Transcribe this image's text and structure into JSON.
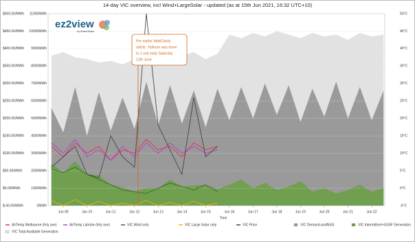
{
  "chart_data": {
    "type": "line",
    "title": "14-day VIC overview, incl Wind+LargeSolar - updated (as at 15th Jun 2021, 16:32 UTC+10)",
    "x_label": "Time",
    "logo": "ez2view",
    "logo_sub": "by Global-Roam",
    "annotation": [
      "Per earlier WattClarity",
      "article, Yallourn was down",
      "to 1 unit early Saturday",
      "12th June"
    ],
    "x": [
      8.5,
      9,
      9.5,
      10,
      10.5,
      11,
      11.5,
      12,
      12.5,
      13,
      13.5,
      14,
      14.5,
      15,
      15.5,
      16,
      16.5,
      17,
      17.5,
      18,
      18.5,
      19,
      19.5,
      20,
      20.5,
      21,
      21.5,
      22,
      22.5
    ],
    "xlim": [
      8.36,
      22.55
    ],
    "xticks": [
      {
        "value": 9,
        "label": "Jun 09"
      },
      {
        "value": 10,
        "label": "Jun 10"
      },
      {
        "value": 11,
        "label": "Jun 11"
      },
      {
        "value": 12,
        "label": "Jun 12"
      },
      {
        "value": 13,
        "label": "Jun 13"
      },
      {
        "value": 14,
        "label": "Jun 14"
      },
      {
        "value": 15,
        "label": "Jun 15"
      },
      {
        "value": 16,
        "label": "Jun 16"
      },
      {
        "value": 17,
        "label": "Jun 17"
      },
      {
        "value": 18,
        "label": "Jun 18"
      },
      {
        "value": 19,
        "label": "Jun 19"
      },
      {
        "value": 20,
        "label": "Jun 20"
      },
      {
        "value": 21,
        "label": "Jun 21"
      },
      {
        "value": 22,
        "label": "Jun 22"
      }
    ],
    "ylim": [
      -50,
      500
    ],
    "yticks": [
      {
        "value": 500,
        "label": "$500.00/MWh"
      },
      {
        "value": 450,
        "label": "$450.00/MWh"
      },
      {
        "value": 400,
        "label": "$400.00/MWh"
      },
      {
        "value": 350,
        "label": "$350.00/MWh"
      },
      {
        "value": 300,
        "label": "$300.00/MWh"
      },
      {
        "value": 250,
        "label": "$250.00/MWh"
      },
      {
        "value": 200,
        "label": "$200.00/MWh"
      },
      {
        "value": 150,
        "label": "$150.00/MWh"
      },
      {
        "value": 100,
        "label": "$100.00/MWh"
      },
      {
        "value": 50,
        "label": "$50.00/MWh"
      },
      {
        "value": 0,
        "label": "$0.00/MWh"
      },
      {
        "value": -50,
        "label": "$-50.00/MWh"
      }
    ],
    "y2lim": [
      0,
      11000
    ],
    "y2ticks": [
      {
        "value": 11000,
        "label": "11000MWh"
      },
      {
        "value": 10000,
        "label": "10000MWh"
      },
      {
        "value": 9000,
        "label": "9000MWh"
      },
      {
        "value": 8000,
        "label": "8000MWh"
      },
      {
        "value": 7000,
        "label": "7000MWh"
      },
      {
        "value": 6000,
        "label": "6000MWh"
      },
      {
        "value": 5000,
        "label": "5000MWh"
      },
      {
        "value": 4000,
        "label": "4000MWh"
      },
      {
        "value": 3000,
        "label": "3000MWh"
      },
      {
        "value": 2000,
        "label": "2000MWh"
      },
      {
        "value": 1000,
        "label": "1000MWh"
      },
      {
        "value": 0,
        "label": "0MWh"
      }
    ],
    "y3lim": [
      -5,
      50
    ],
    "y3ticks": [
      {
        "value": 50,
        "label": "50°C"
      },
      {
        "value": 45,
        "label": "45°C"
      },
      {
        "value": 40,
        "label": "40°C"
      },
      {
        "value": 35,
        "label": "35°C"
      },
      {
        "value": 30,
        "label": "30°C"
      },
      {
        "value": 25,
        "label": "25°C"
      },
      {
        "value": 20,
        "label": "20°C"
      },
      {
        "value": 15,
        "label": "15°C"
      },
      {
        "value": 10,
        "label": "10°C"
      },
      {
        "value": 5,
        "label": "5°C"
      },
      {
        "value": 0,
        "label": "0°C"
      },
      {
        "value": -5,
        "label": "-5°C"
      }
    ],
    "grid": true,
    "series": [
      {
        "name": "AirTemp Melbourne (hrly ave)",
        "color": "#e8304a",
        "axis": "y3",
        "kind": "line",
        "values": [
          12,
          9,
          13,
          10,
          12,
          8,
          11,
          10,
          14,
          11,
          12,
          9,
          13,
          11,
          12,
          null,
          null,
          null,
          null,
          null,
          null,
          null,
          null,
          null,
          null,
          null,
          null,
          null,
          null
        ]
      },
      {
        "name": "AirTemp Latrobe (hrly ave)",
        "color": "#b040d0",
        "axis": "y3",
        "kind": "line",
        "values": [
          13,
          10,
          14,
          9,
          11,
          8,
          12,
          9,
          13,
          10,
          13,
          10,
          12,
          10,
          11,
          null,
          null,
          null,
          null,
          null,
          null,
          null,
          null,
          null,
          null,
          null,
          null,
          null,
          null
        ]
      },
      {
        "name": "VIC Wind only",
        "color": "#3d6b2a",
        "axis": "y2",
        "kind": "line",
        "values": [
          2100,
          1900,
          2200,
          1800,
          1500,
          1200,
          900,
          800,
          700,
          1000,
          1300,
          1100,
          900,
          1200,
          800,
          null,
          null,
          null,
          null,
          null,
          null,
          null,
          null,
          null,
          null,
          null,
          null,
          null,
          null
        ]
      },
      {
        "name": "VIC Large Solar only",
        "color": "#f0b400",
        "axis": "y2",
        "kind": "line",
        "values": [
          300,
          0,
          350,
          0,
          250,
          0,
          150,
          0,
          300,
          0,
          200,
          0,
          250,
          0,
          150,
          null,
          null,
          null,
          null,
          null,
          null,
          null,
          null,
          null,
          null,
          null,
          null,
          null,
          null
        ]
      },
      {
        "name": "VIC Price",
        "color": "#444444",
        "axis": "y",
        "kind": "line",
        "values": [
          60,
          90,
          120,
          40,
          30,
          150,
          90,
          60,
          500,
          180,
          110,
          40,
          260,
          90,
          120,
          null,
          null,
          null,
          null,
          null,
          null,
          null,
          null,
          null,
          null,
          null,
          null,
          null,
          null
        ]
      },
      {
        "name": "VIC Demand-andNSG",
        "color": "#9a9a9a",
        "axis": "y2",
        "kind": "area",
        "values": [
          5600,
          4200,
          6800,
          4000,
          6500,
          4300,
          6200,
          4400,
          7100,
          4600,
          6900,
          4700,
          6600,
          4500,
          6700,
          4900,
          6800,
          5000,
          7000,
          5200,
          6900,
          4800,
          6700,
          5100,
          7100,
          5000,
          6800,
          4900,
          6600
        ]
      },
      {
        "name": "VIC Intermittent+USSF Generation",
        "color": "#6f9f4f",
        "axis": "y2",
        "kind": "area",
        "values": [
          2400,
          1900,
          2550,
          1800,
          1750,
          1200,
          1050,
          800,
          1000,
          1000,
          1500,
          1100,
          1150,
          1200,
          950,
          1200,
          1500,
          1000,
          1300,
          900,
          1100,
          1400,
          800,
          1000,
          700,
          900,
          1200,
          800,
          1000
        ]
      },
      {
        "name": "VIC Total Available Generation",
        "color": "#e2e2e2",
        "axis": "y2",
        "kind": "area",
        "values": [
          8600,
          8800,
          8500,
          8400,
          8200,
          8300,
          8100,
          8400,
          8700,
          8500,
          8300,
          8600,
          8800,
          8400,
          8700,
          9800,
          9600,
          9900,
          9700,
          10000,
          9800,
          9600,
          9900,
          9700,
          9800,
          9500,
          9900,
          9700,
          9800
        ]
      }
    ]
  }
}
